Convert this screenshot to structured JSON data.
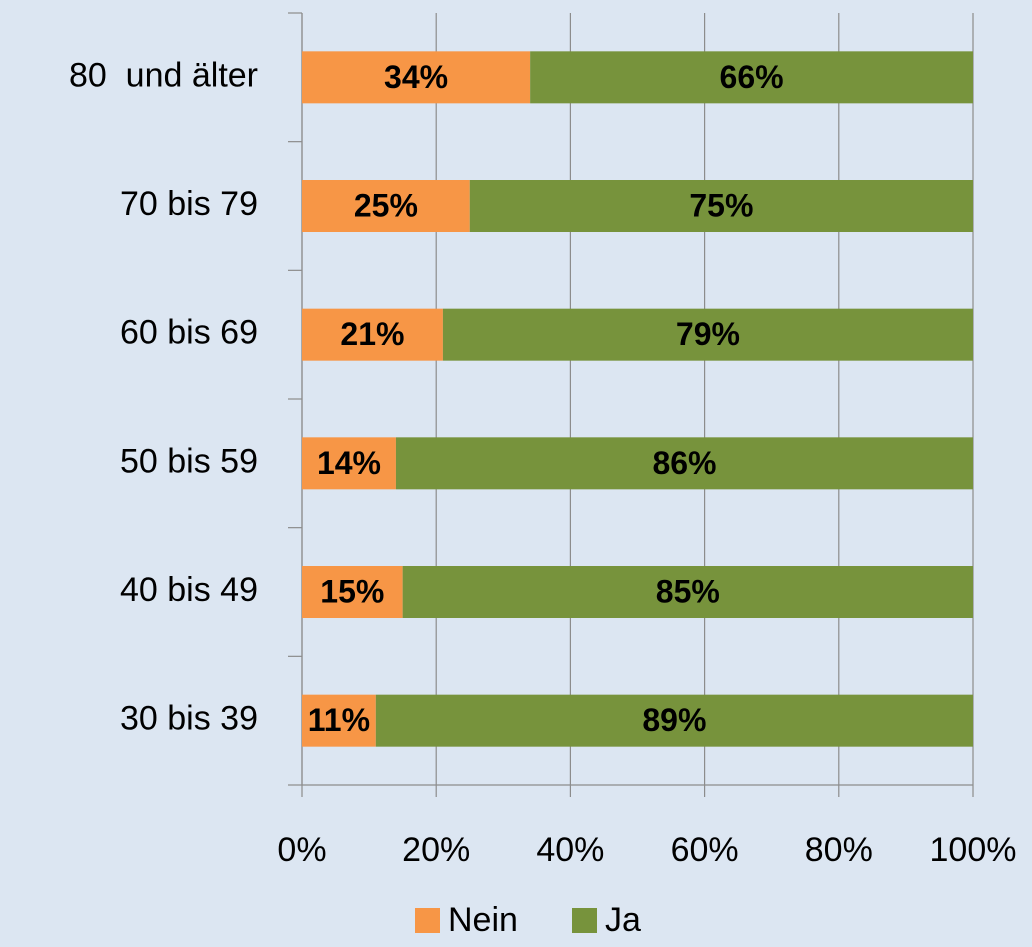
{
  "chart_data": {
    "type": "stacked_bar_horizontal",
    "categories": [
      "80  und älter",
      "70 bis 79",
      "60 bis 69",
      "50 bis 59",
      "40 bis 49",
      "30 bis 39"
    ],
    "series": [
      {
        "name": "Nein",
        "color": "#f79646",
        "values": [
          34,
          25,
          21,
          14,
          15,
          11
        ],
        "value_labels": [
          "34%",
          "25%",
          "21%",
          "14%",
          "15%",
          "11%"
        ]
      },
      {
        "name": "Ja",
        "color": "#77933c",
        "values": [
          66,
          75,
          79,
          86,
          85,
          89
        ],
        "value_labels": [
          "66%",
          "75%",
          "79%",
          "86%",
          "85%",
          "89%"
        ]
      }
    ],
    "xlim": [
      0,
      100
    ],
    "xticks": [
      {
        "value": 0,
        "label": "0%"
      },
      {
        "value": 20,
        "label": "20%"
      },
      {
        "value": 40,
        "label": "40%"
      },
      {
        "value": 60,
        "label": "60%"
      },
      {
        "value": 80,
        "label": "80%"
      },
      {
        "value": 100,
        "label": "100%"
      }
    ],
    "grid": true,
    "legend": "bottom"
  }
}
